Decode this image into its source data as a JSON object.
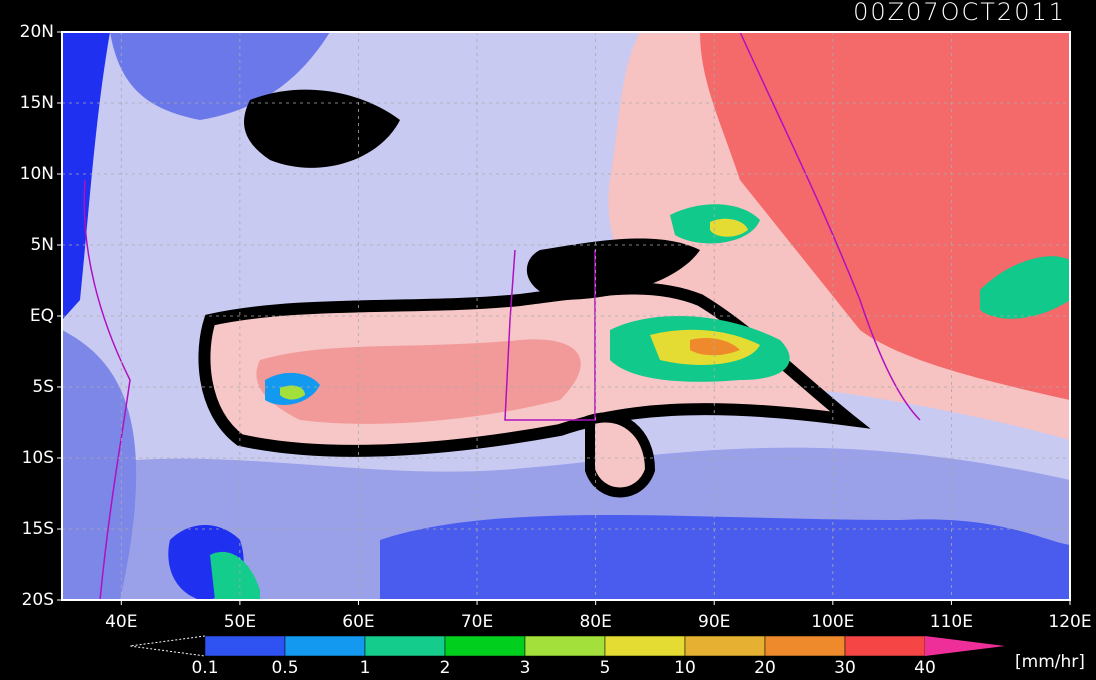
{
  "map": {
    "title": "00Z07OCT2011",
    "lonlim": [
      35,
      120
    ],
    "latlim": [
      -20,
      20
    ],
    "lon_ticks": [
      {
        "value": 40,
        "label": "40E"
      },
      {
        "value": 50,
        "label": "50E"
      },
      {
        "value": 60,
        "label": "60E"
      },
      {
        "value": 70,
        "label": "70E"
      },
      {
        "value": 80,
        "label": "80E"
      },
      {
        "value": 90,
        "label": "90E"
      },
      {
        "value": 100,
        "label": "100E"
      },
      {
        "value": 110,
        "label": "110E"
      },
      {
        "value": 120,
        "label": "120E"
      }
    ],
    "lat_ticks": [
      {
        "value": 20,
        "label": "20N"
      },
      {
        "value": 15,
        "label": "15N"
      },
      {
        "value": 10,
        "label": "10N"
      },
      {
        "value": 5,
        "label": "5N"
      },
      {
        "value": 0,
        "label": "EQ"
      },
      {
        "value": -5,
        "label": "5S"
      },
      {
        "value": -10,
        "label": "10S"
      },
      {
        "value": -15,
        "label": "15S"
      },
      {
        "value": -20,
        "label": "20S"
      }
    ],
    "grid": true,
    "colorbar": {
      "levels": [
        0.1,
        0.5,
        1,
        2,
        3,
        5,
        10,
        20,
        30,
        40
      ],
      "colors": [
        "#2f52f2",
        "#139af0",
        "#14cc8c",
        "#00cf1e",
        "#a3e03c",
        "#e4dc32",
        "#e6b032",
        "#ee8a2c",
        "#f54545",
        "#ee2f9a"
      ],
      "unit": "[mm/hr]"
    }
  }
}
